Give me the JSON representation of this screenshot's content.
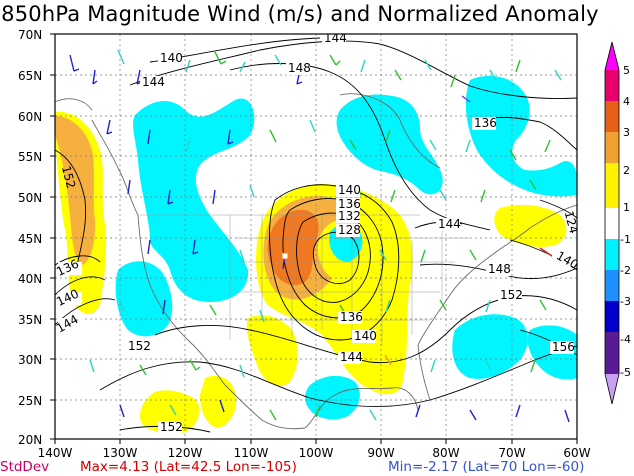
{
  "title": "850hPa Magnitude Wind (m/s) and Normalized Anomaly",
  "lat_labels": [
    "70N",
    "65N",
    "60N",
    "55N",
    "50N",
    "45N",
    "40N",
    "35N",
    "30N",
    "25N",
    "20N"
  ],
  "lon_labels": [
    "140W",
    "130W",
    "120W",
    "110W",
    "100W",
    "90W",
    "80W",
    "70W",
    "60W"
  ],
  "contour_labels": [
    "144",
    "140",
    "144",
    "148",
    "136",
    "152",
    "136",
    "140",
    "144",
    "140",
    "136",
    "132",
    "128",
    "144",
    "148",
    "152",
    "140",
    "136",
    "140",
    "144",
    "152",
    "156",
    "152",
    "140",
    "124"
  ],
  "colorbar": {
    "labels": [
      "5",
      "4",
      "3",
      "2",
      "1",
      "-1",
      "-2",
      "-3",
      "-4",
      "-5"
    ],
    "colors": [
      "#ff00ff",
      "#e8006e",
      "#e86018",
      "#f0a030",
      "#fff200",
      "#ffffff",
      "#00f0ff",
      "#1e90ff",
      "#0000c8",
      "#5a1a96",
      "#c8a0f0"
    ]
  },
  "colors": {
    "positive_1": "#ffff00",
    "positive_2": "#f5b040",
    "positive_3": "#f07820",
    "negative_1": "#00f5ff",
    "contour": "#000000",
    "state_borders": "#9a9a9a"
  },
  "footer": {
    "stddev": "StdDev",
    "max": "Max=4.13 (Lat=42.5 Lon=-105)",
    "min": "Min=-2.17 (Lat=70 Lon=-60)",
    "stddev_color": "#cc0066",
    "max_color": "#d40000",
    "min_color": "#3355cc"
  }
}
